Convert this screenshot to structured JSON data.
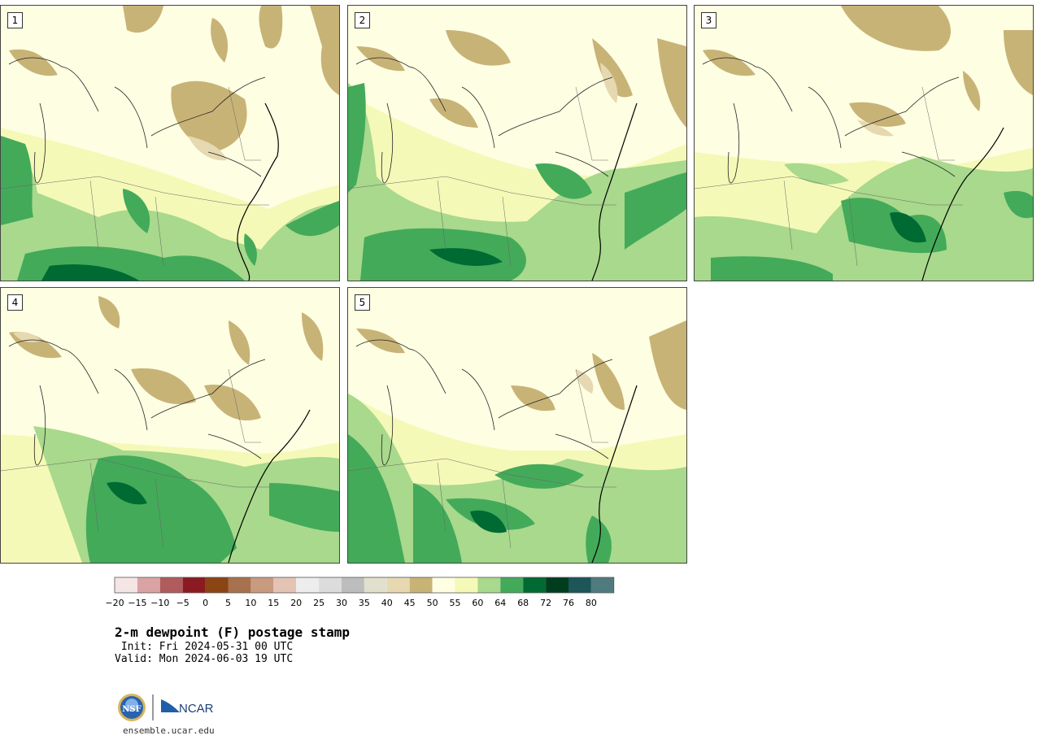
{
  "title": "2-m dewpoint (F) postage stamp",
  "init_line": " Init: Fri 2024-05-31 00 UTC",
  "valid_line": "Valid: Mon 2024-06-03 19 UTC",
  "footer_url": "ensemble.ucar.edu",
  "logos": {
    "nsf": "NSF",
    "ncar": "NCAR"
  },
  "members": [
    {
      "label": "1"
    },
    {
      "label": "2"
    },
    {
      "label": "3"
    },
    {
      "label": "4"
    },
    {
      "label": "5"
    }
  ],
  "legend": {
    "tick_labels": [
      "−20",
      "−15",
      "−10",
      "−5",
      "0",
      "5",
      "10",
      "15",
      "20",
      "25",
      "30",
      "35",
      "40",
      "45",
      "50",
      "55",
      "60",
      "64",
      "68",
      "72",
      "76",
      "80"
    ],
    "colors": [
      "#f5e6e6",
      "#d9a3a3",
      "#b05c5c",
      "#8b1a22",
      "#8b4513",
      "#a8714d",
      "#c89a80",
      "#e3c3b3",
      "#ededed",
      "#dcdcdc",
      "#bdbdbd",
      "#e0e0cc",
      "#e6d8b0",
      "#c8b377",
      "#fefee2",
      "#f5f9b7",
      "#a8d98c",
      "#43aa5a",
      "#006a33",
      "#003d1f",
      "#1d5558",
      "#4f7b7f"
    ]
  },
  "colors": {
    "dry_tan": "#c8b377",
    "pale_tan": "#e6d8b0",
    "cream": "#fefee2",
    "pale_yellow": "#f5f9b7",
    "light_green": "#a8d98c",
    "medium_green": "#43aa5a",
    "dark_green": "#006a33",
    "darkest_green": "#003d1f"
  }
}
